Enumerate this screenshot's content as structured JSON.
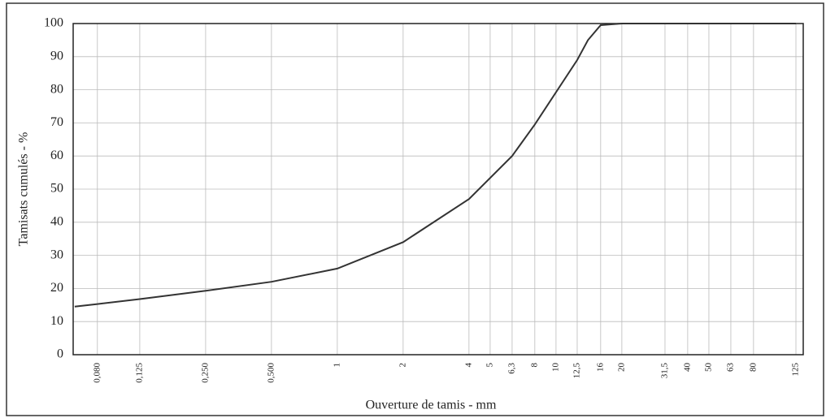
{
  "chart_data": {
    "type": "line",
    "ylabel": "Tamisats cumulés - %",
    "xlabel": "Ouverture de tamis - mm",
    "x": [
      0.063,
      0.08,
      0.125,
      0.25,
      0.5,
      1,
      2,
      4,
      6.3,
      8,
      12.5,
      14,
      16,
      20,
      125
    ],
    "series": [
      {
        "name": "Tamisats",
        "color": "#333333",
        "values": [
          14.5,
          15.3,
          16.8,
          19.3,
          22,
          26,
          34,
          47,
          60,
          69.5,
          89,
          95,
          99.5,
          100,
          100
        ]
      }
    ],
    "xlog": true,
    "xlim": [
      0.062,
      135
    ],
    "xticks": [
      {
        "value": 0.08,
        "label": "0,080"
      },
      {
        "value": 0.125,
        "label": "0,125"
      },
      {
        "value": 0.25,
        "label": "0,250"
      },
      {
        "value": 0.5,
        "label": "0,500"
      },
      1,
      2,
      4,
      5,
      {
        "value": 6.3,
        "label": "6,3"
      },
      8,
      10,
      {
        "value": 12.5,
        "label": "12,5"
      },
      16,
      20,
      {
        "value": 31.5,
        "label": "31,5"
      },
      40,
      50,
      63,
      80,
      125
    ],
    "ylim": [
      0,
      100
    ],
    "yticks": [
      0,
      10,
      20,
      30,
      40,
      50,
      60,
      70,
      80,
      90,
      100
    ],
    "grid": true
  }
}
